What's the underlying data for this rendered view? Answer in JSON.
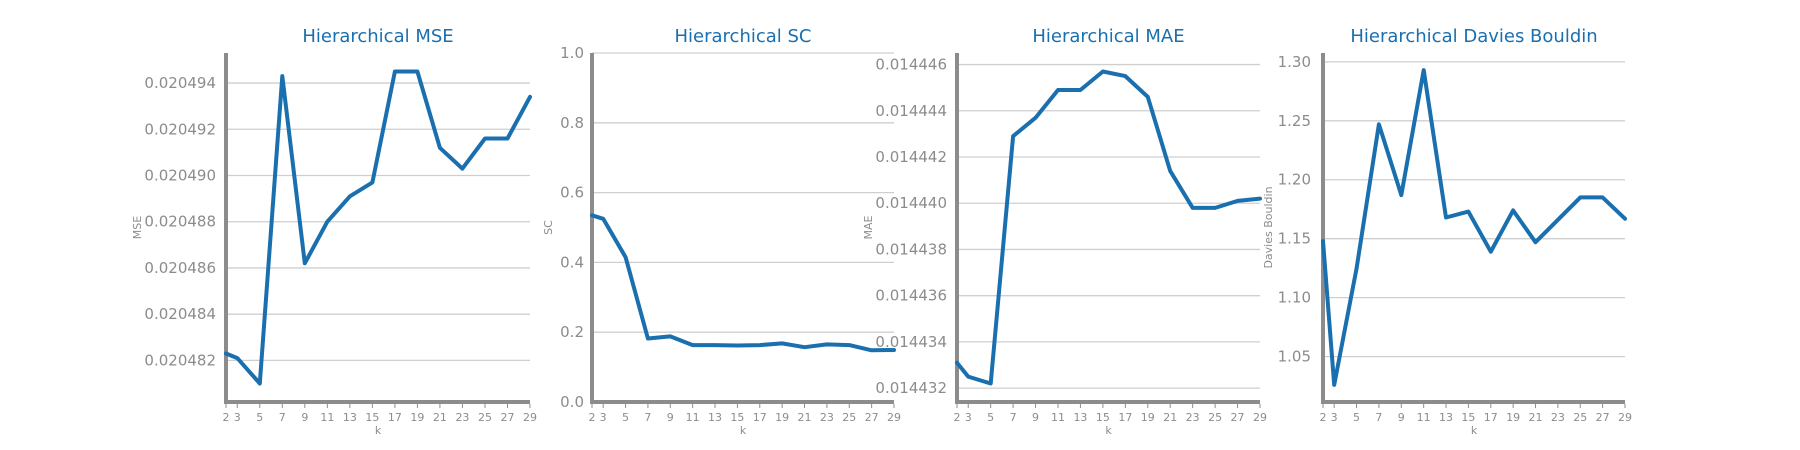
{
  "colors": {
    "line": "#1a6faf",
    "grid": "#cfcfcf",
    "axis": "#8c8c8c",
    "title": "#1a6faf"
  },
  "chart_data": [
    {
      "type": "line",
      "title": "Hierarchical MSE",
      "xlabel": "k",
      "ylabel": "MSE",
      "grid": "horizontal",
      "x": [
        2,
        3,
        5,
        7,
        9,
        11,
        13,
        15,
        17,
        19,
        21,
        23,
        25,
        27,
        29
      ],
      "xticks": [
        2,
        3,
        5,
        7,
        9,
        11,
        13,
        15,
        17,
        19,
        21,
        23,
        25,
        27,
        29
      ],
      "yticks": [
        0.020482,
        0.020484,
        0.020486,
        0.020488,
        0.02049,
        0.020492,
        0.020494
      ],
      "ytick_labels": [
        "0.020482",
        "0.020484",
        "0.020486",
        "0.020488",
        "0.020490",
        "0.020492",
        "0.020494"
      ],
      "xlim": [
        2,
        29
      ],
      "ylim": [
        0.0204802,
        0.0204953
      ],
      "series": [
        {
          "values": [
            0.0204823,
            0.0204821,
            0.020481,
            0.0204943,
            0.0204862,
            0.020488,
            0.0204891,
            0.0204897,
            0.0204945,
            0.0204945,
            0.0204912,
            0.0204903,
            0.0204916,
            0.0204916,
            0.0204934
          ]
        }
      ]
    },
    {
      "type": "line",
      "title": "Hierarchical SC",
      "xlabel": "k",
      "ylabel": "SC",
      "grid": "horizontal",
      "x": [
        2,
        3,
        5,
        7,
        9,
        11,
        13,
        15,
        17,
        19,
        21,
        23,
        25,
        27,
        29
      ],
      "xticks": [
        2,
        3,
        5,
        7,
        9,
        11,
        13,
        15,
        17,
        19,
        21,
        23,
        25,
        27,
        29
      ],
      "yticks": [
        0.0,
        0.2,
        0.4,
        0.6,
        0.8,
        1.0
      ],
      "ytick_labels": [
        "0.0",
        "0.2",
        "0.4",
        "0.6",
        "0.8",
        "1.0"
      ],
      "xlim": [
        2,
        29
      ],
      "ylim": [
        0,
        1.0
      ],
      "series": [
        {
          "values": [
            0.535,
            0.525,
            0.415,
            0.182,
            0.188,
            0.163,
            0.163,
            0.162,
            0.163,
            0.168,
            0.157,
            0.165,
            0.163,
            0.148,
            0.149
          ]
        }
      ]
    },
    {
      "type": "line",
      "title": "Hierarchical MAE",
      "xlabel": "k",
      "ylabel": "MAE",
      "grid": "horizontal",
      "x": [
        2,
        3,
        5,
        7,
        9,
        11,
        13,
        15,
        17,
        19,
        21,
        23,
        25,
        27,
        29
      ],
      "xticks": [
        2,
        3,
        5,
        7,
        9,
        11,
        13,
        15,
        17,
        19,
        21,
        23,
        25,
        27,
        29
      ],
      "yticks": [
        0.014432,
        0.014434,
        0.014436,
        0.014438,
        0.01444,
        0.014442,
        0.014444,
        0.014446
      ],
      "ytick_labels": [
        "0.014432",
        "0.014434",
        "0.014436",
        "0.014438",
        "0.014440",
        "0.014442",
        "0.014444",
        "0.014446"
      ],
      "xlim": [
        2,
        29
      ],
      "ylim": [
        0.0144314,
        0.0144465
      ],
      "series": [
        {
          "values": [
            0.0144331,
            0.0144325,
            0.0144322,
            0.0144429,
            0.0144437,
            0.0144449,
            0.0144449,
            0.0144457,
            0.0144455,
            0.0144446,
            0.0144414,
            0.0144398,
            0.0144398,
            0.0144401,
            0.0144402
          ]
        }
      ]
    },
    {
      "type": "line",
      "title": "Hierarchical Davies Bouldin",
      "xlabel": "k",
      "ylabel": "Davies Bouldin",
      "grid": "horizontal",
      "x": [
        2,
        3,
        5,
        7,
        9,
        11,
        13,
        15,
        17,
        19,
        21,
        23,
        25,
        27,
        29
      ],
      "xticks": [
        2,
        3,
        5,
        7,
        9,
        11,
        13,
        15,
        17,
        19,
        21,
        23,
        25,
        27,
        29
      ],
      "yticks": [
        1.05,
        1.1,
        1.15,
        1.2,
        1.25,
        1.3
      ],
      "ytick_labels": [
        "1.05",
        "1.10",
        "1.15",
        "1.20",
        "1.25",
        "1.30"
      ],
      "xlim": [
        2,
        29
      ],
      "ylim": [
        1.0115,
        1.3075
      ],
      "series": [
        {
          "values": [
            1.148,
            1.026,
            1.125,
            1.247,
            1.187,
            1.293,
            1.168,
            1.173,
            1.139,
            1.174,
            1.147,
            1.166,
            1.185,
            1.185,
            1.167
          ]
        }
      ]
    }
  ]
}
